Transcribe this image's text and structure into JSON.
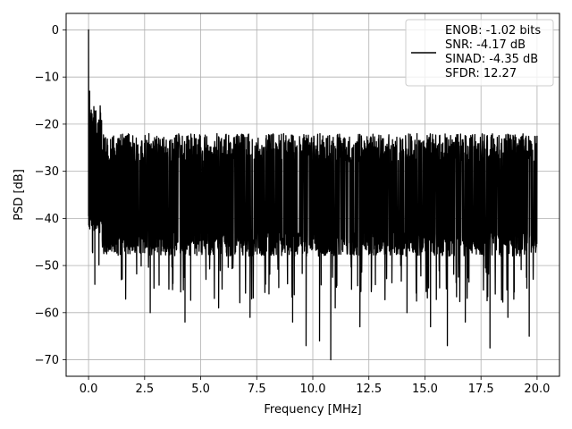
{
  "chart_data": {
    "type": "line",
    "title": "",
    "xlabel": "Frequency [MHz]",
    "ylabel": "PSD [dB]",
    "xlim": [
      -1.0,
      21.0
    ],
    "ylim": [
      -73.5,
      3.5
    ],
    "xticks": [
      0.0,
      2.5,
      5.0,
      7.5,
      10.0,
      12.5,
      15.0,
      17.5,
      20.0
    ],
    "xtick_labels": [
      "0.0",
      "2.5",
      "5.0",
      "7.5",
      "10.0",
      "12.5",
      "15.0",
      "17.5",
      "20.0"
    ],
    "yticks": [
      0,
      -10,
      -20,
      -30,
      -40,
      -50,
      -60,
      -70
    ],
    "ytick_labels": [
      "0",
      "−10",
      "−20",
      "−30",
      "−40",
      "−50",
      "−60",
      "−70"
    ],
    "grid": true,
    "legend_position": "top-right",
    "series": [
      {
        "color": "#000000",
        "legend_lines": [
          "ENOB: -1.02 bits",
          "SNR: -4.17 dB",
          "SINAD: -4.35 dB",
          "SFDR: 12.27"
        ],
        "x_range": [
          0.0,
          20.0
        ],
        "noise_floor": {
          "typical_top": -26,
          "typical_bottom": -45,
          "median": -35
        },
        "peaks": [
          {
            "x": 0.0,
            "y": 0.0
          },
          {
            "x": 0.05,
            "y": -13
          },
          {
            "x": 0.1,
            "y": -22
          },
          {
            "x": 0.12,
            "y": -17
          },
          {
            "x": 0.2,
            "y": -30
          },
          {
            "x": 0.28,
            "y": -54
          },
          {
            "x": 0.5,
            "y": -43
          },
          {
            "x": 1.3,
            "y": -25
          },
          {
            "x": 2.75,
            "y": -60
          },
          {
            "x": 4.3,
            "y": -62
          },
          {
            "x": 5.8,
            "y": -59
          },
          {
            "x": 7.2,
            "y": -61
          },
          {
            "x": 9.1,
            "y": -62
          },
          {
            "x": 9.7,
            "y": -67
          },
          {
            "x": 10.3,
            "y": -66
          },
          {
            "x": 10.8,
            "y": -70
          },
          {
            "x": 11.0,
            "y": -59
          },
          {
            "x": 12.1,
            "y": -63
          },
          {
            "x": 14.2,
            "y": -60
          },
          {
            "x": 15.25,
            "y": -63
          },
          {
            "x": 16.0,
            "y": -67
          },
          {
            "x": 16.8,
            "y": -62
          },
          {
            "x": 17.9,
            "y": -67.5
          },
          {
            "x": 18.7,
            "y": -61
          },
          {
            "x": 19.65,
            "y": -65
          }
        ]
      }
    ]
  }
}
